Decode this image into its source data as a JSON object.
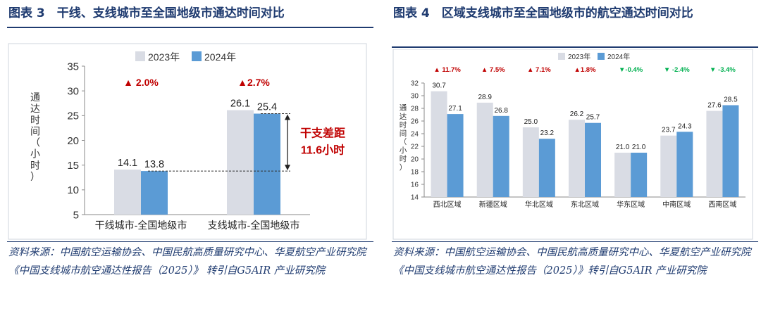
{
  "left": {
    "figure_title": "图表 3　干线、支线城市至全国地级市通达时间对比",
    "source_note": "资料来源：中国航空运输协会、中国民航高质量研究中心、华夏航空产业研究院《中国支线城市航空通达性报告（2025）》 转引自G5AIR 产业研究院",
    "gap_label_line1": "干支差距",
    "gap_label_line2": "11.6小时",
    "chart_data": {
      "type": "bar",
      "categories": [
        "干线城市-全国地级市",
        "支线城市-全国地级市"
      ],
      "series": [
        {
          "name": "2023年",
          "values": [
            14.1,
            26.1
          ]
        },
        {
          "name": "2024年",
          "values": [
            13.8,
            25.4
          ]
        }
      ],
      "change_labels": [
        "▲ 2.0%",
        "▲2.7%"
      ],
      "ylabel": "通达时间（小时）",
      "ylim": [
        5,
        35
      ],
      "yticks": [
        5,
        10,
        15,
        20,
        25,
        30,
        35
      ],
      "legend": "top-center",
      "grid": false,
      "colors": {
        "2023年": "#d9dce4",
        "2024年": "#5b9bd5",
        "change": "#c00000"
      }
    }
  },
  "right": {
    "figure_title": "图表 4　区域支线城市至全国地级市的航空通达时间对比",
    "source_note": "资料来源：中国航空运输协会、中国民航高质量研究中心、华夏航空产业研究院《中国支线城市航空通达性报告（2025）》转引自G5AIR 产业研究院",
    "chart_data": {
      "type": "bar",
      "categories": [
        "西北区域",
        "新疆区域",
        "华北区域",
        "东北区域",
        "华东区域",
        "中南区域",
        "西南区域"
      ],
      "series": [
        {
          "name": "2023年",
          "values": [
            30.7,
            28.9,
            25.0,
            26.2,
            21.0,
            23.7,
            27.6
          ]
        },
        {
          "name": "2024年",
          "values": [
            27.1,
            26.8,
            23.2,
            25.7,
            21.0,
            24.3,
            28.5
          ]
        }
      ],
      "change_labels": [
        "▲ 11.7%",
        "▲ 7.5%",
        "▲ 7.1%",
        "▲1.8%",
        "▼-0.4%",
        "▼ -2.4%",
        "▼ -3.4%"
      ],
      "change_direction": [
        "up",
        "up",
        "up",
        "up",
        "down",
        "down",
        "down"
      ],
      "ylabel": "通达时间（小时）",
      "ylim": [
        14,
        32
      ],
      "yticks": [
        14,
        16,
        18,
        20,
        22,
        24,
        26,
        28,
        30,
        32
      ],
      "legend": "top-center",
      "grid": false,
      "colors": {
        "2023年": "#d9dce4",
        "2024年": "#5b9bd5",
        "up": "#c00000",
        "down": "#00b050"
      }
    }
  }
}
